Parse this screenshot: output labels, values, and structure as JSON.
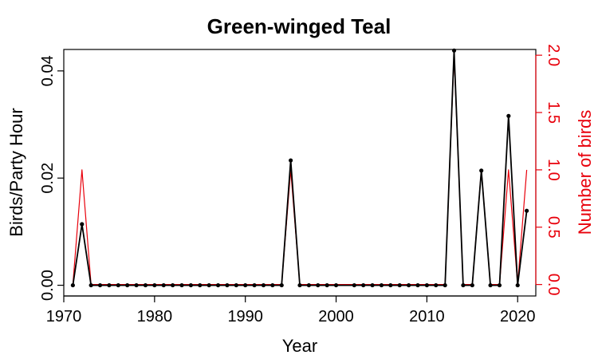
{
  "chart_data": {
    "type": "line",
    "title": "Green-winged Teal",
    "xlabel": "Year",
    "ylabel_left": "Birds/Party Hour",
    "ylabel_right": "Number of birds",
    "xlim": [
      1970,
      2022
    ],
    "ylim_left": [
      -0.002,
      0.044
    ],
    "ylim_right": [
      -0.1,
      2.05
    ],
    "x_ticks": [
      1970,
      1980,
      1990,
      2000,
      2010,
      2020
    ],
    "x_tick_labels": [
      "1970",
      "1980",
      "1990",
      "2000",
      "2010",
      "2020"
    ],
    "y_left_ticks": [
      0.0,
      0.02,
      0.04
    ],
    "y_left_tick_labels": [
      "0.00",
      "0.02",
      "0.04"
    ],
    "y_right_ticks": [
      0.0,
      0.5,
      1.0,
      1.5,
      2.0
    ],
    "y_right_tick_labels": [
      "0.0",
      "0.5",
      "1.0",
      "1.5",
      "2.0"
    ],
    "grid": false,
    "colors": {
      "left_series": "#000000",
      "right_series": "#e8000b",
      "right_axis": "#e8000b"
    },
    "series": [
      {
        "axis": "left",
        "x": [
          1971,
          1972,
          1973,
          1974,
          1975,
          1976,
          1977,
          1978,
          1979,
          1980,
          1981,
          1982,
          1983,
          1984,
          1985,
          1986,
          1987,
          1988,
          1989,
          1990,
          1991,
          1992,
          1993,
          1994,
          1995,
          1996,
          1997,
          1998,
          1999,
          2000,
          2002,
          2003,
          2004,
          2005,
          2006,
          2007,
          2008,
          2009,
          2010,
          2011,
          2012,
          2013,
          2014,
          2015,
          2016,
          2017,
          2018,
          2019,
          2020,
          2021
        ],
        "values": [
          0,
          0.0114,
          0,
          0,
          0,
          0,
          0,
          0,
          0,
          0,
          0,
          0,
          0,
          0,
          0,
          0,
          0,
          0,
          0,
          0,
          0,
          0,
          0,
          0,
          0.0233,
          0,
          0,
          0,
          0,
          0,
          0,
          0,
          0,
          0,
          0,
          0,
          0,
          0,
          0,
          0,
          0,
          0.0438,
          0,
          0,
          0.0214,
          0,
          0,
          0.0316,
          0,
          0.0139
        ]
      },
      {
        "axis": "right",
        "x": [
          1971,
          1972,
          1973,
          1974,
          1975,
          1976,
          1977,
          1978,
          1979,
          1980,
          1981,
          1982,
          1983,
          1984,
          1985,
          1986,
          1987,
          1988,
          1989,
          1990,
          1991,
          1992,
          1993,
          1994,
          1995,
          1996,
          1997,
          1998,
          1999,
          2000,
          2002,
          2003,
          2004,
          2005,
          2006,
          2007,
          2008,
          2009,
          2010,
          2011,
          2012,
          2013,
          2014,
          2015,
          2016,
          2017,
          2018,
          2019,
          2020,
          2021
        ],
        "values": [
          0,
          1,
          0,
          0,
          0,
          0,
          0,
          0,
          0,
          0,
          0,
          0,
          0,
          0,
          0,
          0,
          0,
          0,
          0,
          0,
          0,
          0,
          0,
          0,
          1,
          0,
          0,
          0,
          0,
          0,
          0,
          0,
          0,
          0,
          0,
          0,
          0,
          0,
          0,
          0,
          0,
          2,
          0,
          0,
          1,
          0,
          0,
          1,
          0,
          1
        ]
      }
    ]
  }
}
